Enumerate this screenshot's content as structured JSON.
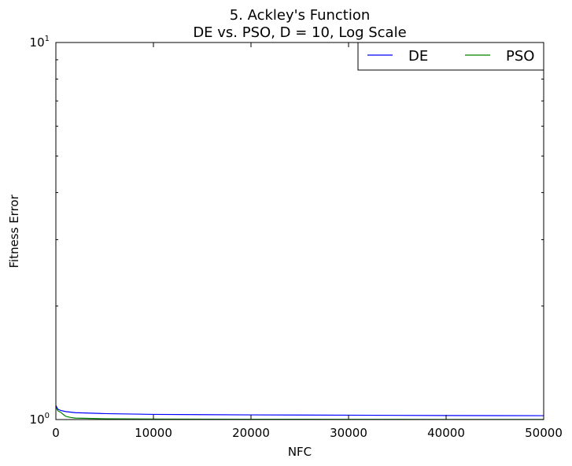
{
  "chart_data": {
    "type": "line",
    "title_line1": "5.   Ackley's Function",
    "title_line2": "DE vs. PSO, D = 10, Log Scale",
    "xlabel": "NFC",
    "ylabel": "Fitness Error",
    "xlim": [
      0,
      50000
    ],
    "ylim": [
      1,
      10
    ],
    "y_scale": "log",
    "grid": false,
    "legend_position": "top-right",
    "x_ticks": [
      {
        "value": 0,
        "label": "0"
      },
      {
        "value": 10000,
        "label": "10000"
      },
      {
        "value": 20000,
        "label": "20000"
      },
      {
        "value": 30000,
        "label": "30000"
      },
      {
        "value": 40000,
        "label": "40000"
      },
      {
        "value": 50000,
        "label": "50000"
      }
    ],
    "y_ticks": [
      {
        "value": 1,
        "base": "10",
        "exp": "0"
      },
      {
        "value": 10,
        "base": "10",
        "exp": "1"
      }
    ],
    "series": [
      {
        "name": "DE",
        "color": "#0000ff",
        "x": [
          0,
          200,
          500,
          1000,
          2000,
          5000,
          10000,
          20000,
          30000,
          40000,
          50000
        ],
        "y": [
          1.09,
          1.065,
          1.057,
          1.05,
          1.043,
          1.037,
          1.032,
          1.029,
          1.027,
          1.025,
          1.024
        ]
      },
      {
        "name": "PSO",
        "color": "#008000",
        "x": [
          0,
          200,
          500,
          800,
          1000,
          1500,
          2000,
          5000,
          10000,
          20000,
          30000,
          40000,
          50000
        ],
        "y": [
          1.08,
          1.055,
          1.045,
          1.03,
          1.02,
          1.013,
          1.009,
          1.005,
          1.003,
          1.002,
          1.0015,
          1.001,
          1.001
        ]
      }
    ]
  }
}
